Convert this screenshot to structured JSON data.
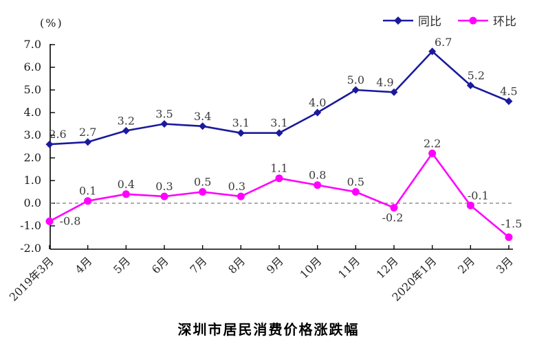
{
  "chart_data": {
    "type": "line",
    "title": "深圳市居民消费价格涨跌幅",
    "unit_label": "(%)",
    "categories": [
      "2019年3月",
      "4月",
      "5月",
      "6月",
      "7月",
      "8月",
      "9月",
      "10月",
      "11月",
      "12月",
      "2020年1月",
      "2月",
      "3月"
    ],
    "series": [
      {
        "name": "同比",
        "color": "#1a1a9c",
        "marker": "diamond",
        "values": [
          2.6,
          2.7,
          3.2,
          3.5,
          3.4,
          3.1,
          3.1,
          4.0,
          5.0,
          4.9,
          6.7,
          5.2,
          4.5
        ]
      },
      {
        "name": "环比",
        "color": "#ff00ff",
        "marker": "circle",
        "values": [
          -0.8,
          0.1,
          0.4,
          0.3,
          0.5,
          0.3,
          1.1,
          0.8,
          0.5,
          -0.2,
          2.2,
          -0.1,
          -1.5
        ]
      }
    ],
    "ylim": [
      -2.0,
      7.0
    ],
    "ytick_step": 1.0,
    "ytick_labels": [
      "7.0",
      "6.0",
      "5.0",
      "4.0",
      "3.0",
      "2.0",
      "1.0",
      "0.0",
      "-1.0",
      "-2.0"
    ],
    "zero_line_style": "dashed",
    "grid": false,
    "legend_position": "top-right"
  }
}
